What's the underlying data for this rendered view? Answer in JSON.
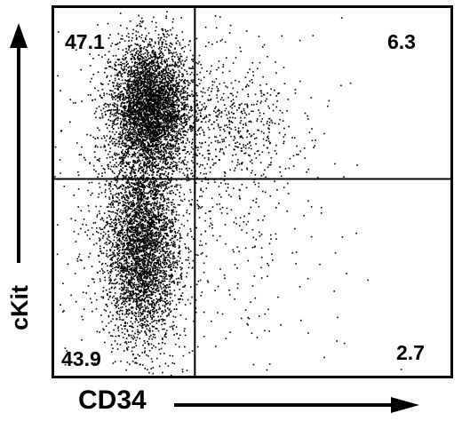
{
  "chart_data": {
    "type": "scatter",
    "title": "",
    "xlabel": "CD34",
    "ylabel": "cKit",
    "xlim": [
      0,
      1
    ],
    "ylim": [
      0,
      1
    ],
    "grid": false,
    "legend": "none",
    "point_color": "#000000",
    "quadrant_gates": {
      "x": 0.355,
      "y": 0.535
    },
    "quadrants": [
      {
        "name": "upper-left",
        "value": "47.1"
      },
      {
        "name": "upper-right",
        "value": "6.3"
      },
      {
        "name": "lower-left",
        "value": "43.9"
      },
      {
        "name": "lower-right",
        "value": "2.7"
      }
    ],
    "populations": [
      {
        "name": "cKit+ CD34- cluster",
        "cx": 0.24,
        "cy": 0.73,
        "sx": 0.05,
        "sy": 0.09,
        "n": 4200
      },
      {
        "name": "cKit- CD34- cluster",
        "cx": 0.22,
        "cy": 0.35,
        "sx": 0.045,
        "sy": 0.13,
        "n": 3600
      },
      {
        "name": "cKit+ CD34+ cluster",
        "cx": 0.45,
        "cy": 0.68,
        "sx": 0.08,
        "sy": 0.09,
        "n": 480
      },
      {
        "name": "diffuse background",
        "cx": 0.3,
        "cy": 0.45,
        "sx": 0.18,
        "sy": 0.25,
        "n": 900
      }
    ]
  }
}
